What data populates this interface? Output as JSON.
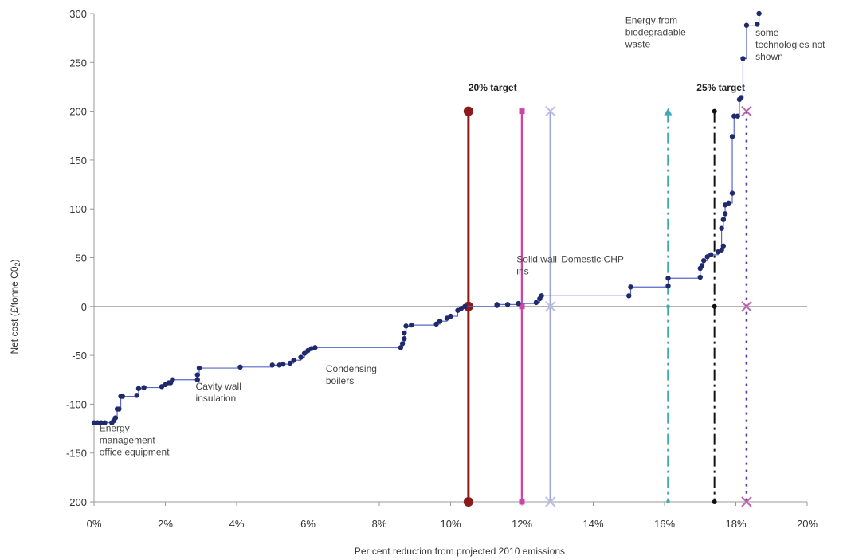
{
  "chart_data": {
    "type": "line",
    "title": "",
    "xlabel": "Per cent reduction from projected 2010 emissions",
    "ylabel": "Net cost (£/tonne C0",
    "ylabel_sub": "2",
    "ylabel_end": ")",
    "xlim": [
      0,
      20
    ],
    "ylim": [
      -200,
      300
    ],
    "x_ticks": [
      0,
      2,
      4,
      6,
      8,
      10,
      12,
      14,
      16,
      18,
      20
    ],
    "x_tick_labels": [
      "0%",
      "2%",
      "4%",
      "6%",
      "8%",
      "10%",
      "12%",
      "14%",
      "16%",
      "18%",
      "20%"
    ],
    "y_ticks": [
      -200,
      -150,
      -100,
      -50,
      0,
      50,
      100,
      150,
      200,
      250,
      300
    ],
    "y_tick_labels": [
      "-200",
      "-150",
      "-100",
      "-50",
      "0",
      "50",
      "100",
      "150",
      "200",
      "250",
      "300"
    ],
    "grid": false,
    "series": [
      {
        "color": "#1f2a6e",
        "step": true,
        "points": [
          [
            0.0,
            -119
          ],
          [
            0.1,
            -119
          ],
          [
            0.2,
            -119
          ],
          [
            0.3,
            -119
          ],
          [
            0.5,
            -119
          ],
          [
            0.55,
            -117
          ],
          [
            0.6,
            -114
          ],
          [
            0.65,
            -105
          ],
          [
            0.7,
            -105
          ],
          [
            0.75,
            -92
          ],
          [
            0.8,
            -92
          ],
          [
            1.2,
            -91
          ],
          [
            1.25,
            -84
          ],
          [
            1.4,
            -83
          ],
          [
            1.9,
            -82
          ],
          [
            2.0,
            -80
          ],
          [
            2.1,
            -78
          ],
          [
            2.15,
            -78
          ],
          [
            2.2,
            -75
          ],
          [
            2.9,
            -75
          ],
          [
            2.9,
            -70
          ],
          [
            2.95,
            -63
          ],
          [
            4.1,
            -62
          ],
          [
            5.0,
            -60
          ],
          [
            5.2,
            -60
          ],
          [
            5.3,
            -59
          ],
          [
            5.5,
            -58
          ],
          [
            5.6,
            -55
          ],
          [
            5.8,
            -52
          ],
          [
            5.9,
            -48
          ],
          [
            6.0,
            -45
          ],
          [
            6.1,
            -43
          ],
          [
            6.2,
            -42
          ],
          [
            8.6,
            -42
          ],
          [
            8.65,
            -38
          ],
          [
            8.7,
            -33
          ],
          [
            8.7,
            -27
          ],
          [
            8.75,
            -20
          ],
          [
            8.9,
            -19
          ],
          [
            9.6,
            -18
          ],
          [
            9.7,
            -15
          ],
          [
            9.9,
            -12
          ],
          [
            10.0,
            -10
          ],
          [
            10.2,
            -4
          ],
          [
            10.3,
            -2
          ],
          [
            10.4,
            0
          ],
          [
            11.3,
            1
          ],
          [
            11.3,
            2
          ],
          [
            11.6,
            2
          ],
          [
            11.9,
            3
          ],
          [
            12.4,
            4
          ],
          [
            12.5,
            8
          ],
          [
            12.55,
            11
          ],
          [
            15.0,
            11
          ],
          [
            15.05,
            20
          ],
          [
            16.1,
            21
          ],
          [
            16.1,
            29
          ],
          [
            17.0,
            30
          ],
          [
            17.0,
            39
          ],
          [
            17.05,
            42
          ],
          [
            17.1,
            47
          ],
          [
            17.2,
            51
          ],
          [
            17.3,
            53
          ],
          [
            17.5,
            56
          ],
          [
            17.6,
            58
          ],
          [
            17.65,
            62
          ],
          [
            17.6,
            80
          ],
          [
            17.65,
            89
          ],
          [
            17.7,
            95
          ],
          [
            17.7,
            104
          ],
          [
            17.8,
            106
          ],
          [
            17.9,
            116
          ],
          [
            17.9,
            174
          ],
          [
            17.95,
            195
          ],
          [
            18.05,
            195
          ],
          [
            18.1,
            212
          ],
          [
            18.15,
            214
          ],
          [
            18.2,
            254
          ],
          [
            18.3,
            288
          ],
          [
            18.6,
            289
          ],
          [
            18.65,
            300
          ]
        ]
      }
    ],
    "targets": [
      {
        "label": "20% target",
        "x": 10.5,
        "y_top": 200,
        "y_bottom": -200,
        "color": "#8b1a1a",
        "dash": "solid",
        "marker": "circle",
        "width": 3
      },
      {
        "label": "",
        "x": 12.0,
        "y_top": 200,
        "y_bottom": -200,
        "color": "#cc44aa",
        "dash": "solid",
        "marker": "square",
        "width": 2.5
      },
      {
        "label": "",
        "x": 12.8,
        "y_top": 200,
        "y_bottom": -200,
        "color": "#9fa6d8",
        "dash": "solid",
        "marker": "x",
        "width": 2.5
      },
      {
        "label": "",
        "x": 16.1,
        "y_top": 200,
        "y_bottom": -200,
        "color": "#3fa9b5",
        "dash": "dashdot",
        "marker": "triangle",
        "width": 2.5
      },
      {
        "label": "25% target",
        "x": 17.4,
        "y_top": 200,
        "y_bottom": -200,
        "color": "#111111",
        "dash": "dashdot",
        "marker": "dot",
        "width": 2
      },
      {
        "label": "",
        "x": 18.3,
        "y_top": 200,
        "y_bottom": -200,
        "color": "#5a3a9a",
        "dash": "dotted",
        "marker": "xpink",
        "width": 2.5
      }
    ],
    "annotations": [
      {
        "name": "energy-management-label",
        "lines": [
          "Energy",
          "management",
          "office equipment"
        ],
        "x": 0.15,
        "y": -128
      },
      {
        "name": "cavity-wall-label",
        "lines": [
          "Cavity wall",
          "insulation"
        ],
        "x": 2.85,
        "y": -85
      },
      {
        "name": "condensing-boilers-label",
        "lines": [
          "Condensing",
          "boilers"
        ],
        "x": 6.5,
        "y": -67
      },
      {
        "name": "solid-wall-label",
        "lines": [
          "Solid wall",
          "ins"
        ],
        "x": 11.85,
        "y": 45
      },
      {
        "name": "domestic-chp-label",
        "lines": [
          "Domestic CHP"
        ],
        "x": 13.1,
        "y": 45
      },
      {
        "name": "biodegradable-waste-label",
        "lines": [
          "Energy from",
          "biodegradable",
          "waste"
        ],
        "x": 14.9,
        "y": 290
      },
      {
        "name": "some-technologies-label",
        "lines": [
          "some",
          "technologies not",
          "shown"
        ],
        "x": 18.55,
        "y": 277
      }
    ],
    "target_label_positions": {
      "20% target": {
        "x": 10.5,
        "y": 221
      },
      "25% target": {
        "x": 16.9,
        "y": 221
      }
    }
  },
  "colors": {
    "axis": "#999999",
    "series_line": "#5a67c8",
    "series_point": "#1f2a6e"
  }
}
